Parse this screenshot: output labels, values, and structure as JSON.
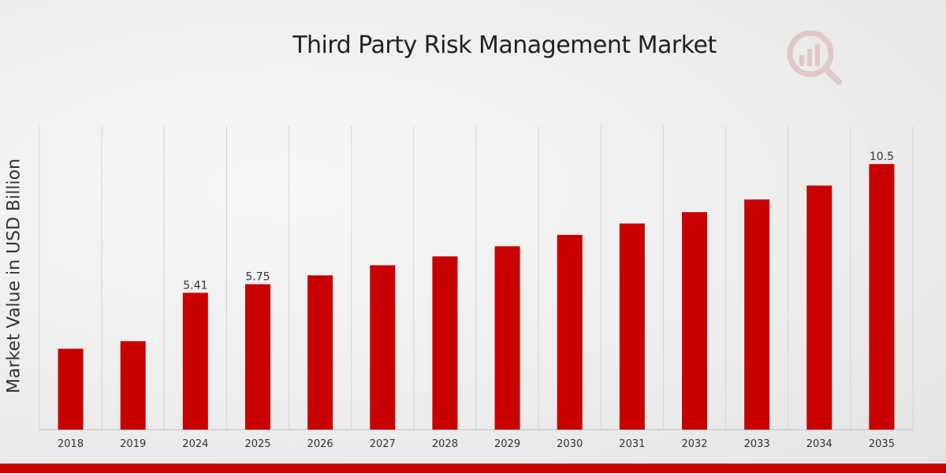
{
  "chart_data": {
    "type": "bar",
    "title": "Third Party Risk Management Market",
    "ylabel": "Market Value in USD Billion",
    "xlabel": "",
    "categories": [
      "2018",
      "2019",
      "2024",
      "2025",
      "2026",
      "2027",
      "2028",
      "2029",
      "2030",
      "2031",
      "2032",
      "2033",
      "2034",
      "2035"
    ],
    "values": [
      3.2,
      3.5,
      5.41,
      5.75,
      6.1,
      6.5,
      6.85,
      7.25,
      7.7,
      8.15,
      8.6,
      9.1,
      9.65,
      10.5
    ],
    "data_labels": [
      "",
      "",
      "5.41",
      "5.75",
      "",
      "",
      "",
      "",
      "",
      "",
      "",
      "",
      "",
      "10.5"
    ],
    "ylim": [
      0,
      12
    ],
    "grid": "vertical",
    "bar_color": "#c80000"
  },
  "colors": {
    "bar": "#c80000",
    "grid": "#d4d4d4",
    "bottom_bar": "#c80000"
  },
  "logo": {
    "icon": "magnifier-chart-icon"
  }
}
